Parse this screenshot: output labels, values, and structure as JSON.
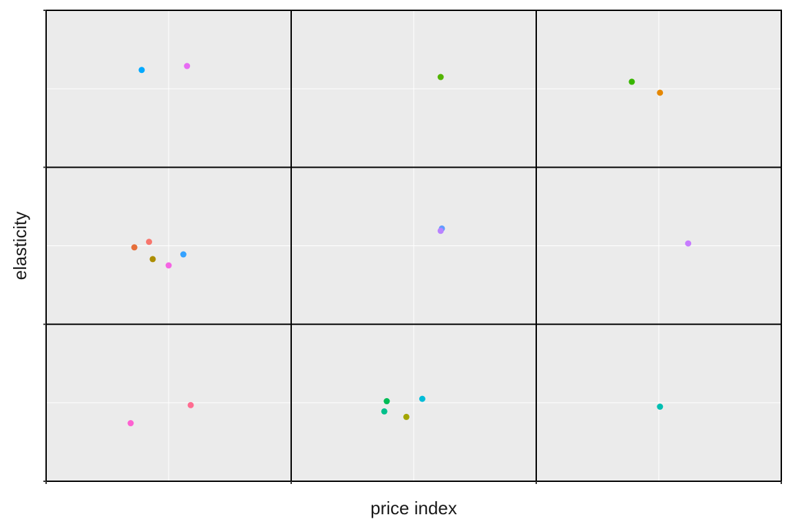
{
  "chart_data": {
    "type": "scatter",
    "title": "",
    "xlabel": "price index",
    "ylabel": "elasticity",
    "xlim": [
      0,
      3
    ],
    "ylim": [
      0,
      3
    ],
    "grid": true,
    "grid_major": [
      0.5,
      1.5,
      2.5
    ],
    "grid_minor": [
      1,
      2
    ],
    "tick_labels": false,
    "legend": "none",
    "background": "#ebebeb",
    "grid_color": "#ffffff",
    "divider_color": "#000000",
    "points": [
      {
        "x": 0.39,
        "y": 2.62,
        "color": "#00a9ff"
      },
      {
        "x": 0.575,
        "y": 2.645,
        "color": "#e76bf3"
      },
      {
        "x": 1.61,
        "y": 2.575,
        "color": "#53b400"
      },
      {
        "x": 2.39,
        "y": 2.545,
        "color": "#39b600"
      },
      {
        "x": 2.505,
        "y": 2.475,
        "color": "#e58700"
      },
      {
        "x": 0.36,
        "y": 1.49,
        "color": "#e66f3a"
      },
      {
        "x": 0.42,
        "y": 1.525,
        "color": "#f8766d"
      },
      {
        "x": 0.435,
        "y": 1.415,
        "color": "#ac8d00"
      },
      {
        "x": 0.5,
        "y": 1.375,
        "color": "#f564e3"
      },
      {
        "x": 0.56,
        "y": 1.445,
        "color": "#35a2ff"
      },
      {
        "x": 1.615,
        "y": 1.61,
        "color": "#619cff"
      },
      {
        "x": 1.61,
        "y": 1.595,
        "color": "#b983ff"
      },
      {
        "x": 2.62,
        "y": 1.515,
        "color": "#c77cff"
      },
      {
        "x": 0.345,
        "y": 0.37,
        "color": "#fd61d1"
      },
      {
        "x": 0.59,
        "y": 0.485,
        "color": "#ff6c91"
      },
      {
        "x": 1.39,
        "y": 0.51,
        "color": "#00bc56"
      },
      {
        "x": 1.38,
        "y": 0.445,
        "color": "#00c08b"
      },
      {
        "x": 1.47,
        "y": 0.41,
        "color": "#a3a500"
      },
      {
        "x": 1.535,
        "y": 0.525,
        "color": "#00bcd8"
      },
      {
        "x": 2.505,
        "y": 0.475,
        "color": "#00bfb2"
      }
    ]
  }
}
